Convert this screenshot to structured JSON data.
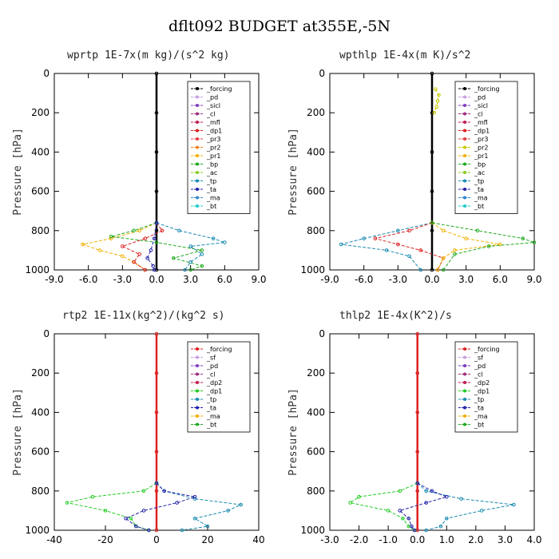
{
  "title": "dflt092  BUDGET at355E,-5N",
  "chart_data": [
    {
      "type": "line",
      "title": "wprtp   1E-7x(m kg)/(s^2 kg)",
      "ylabel": "Pressure [hPa]",
      "ylim": [
        1000,
        0
      ],
      "yticks": [
        "0",
        "200",
        "400",
        "600",
        "800",
        "1000"
      ],
      "xlim": [
        -9,
        9
      ],
      "xticks": [
        "-9.0",
        "-6.0",
        "-3.0",
        "0.0",
        "3.0",
        "6.0",
        "9.0"
      ],
      "legend_position": "top-right",
      "legend": [
        "_forcing",
        "_pd",
        "_sicl",
        "_cl",
        "_mfl",
        "_dp1",
        "_pr3",
        "_pr2",
        "_pr1",
        "_bp",
        "_ac",
        "_tp",
        "_ta",
        "_ma",
        "_bt"
      ],
      "series": [
        {
          "name": "_forcing",
          "color": "#000000",
          "p": [
            0,
            200,
            400,
            600,
            800,
            1000
          ],
          "x": [
            0,
            0,
            0,
            0,
            0,
            0
          ]
        },
        {
          "name": "_pr1",
          "color": "#f0b000",
          "p": [
            760,
            800,
            840,
            870,
            900,
            930,
            960,
            1000
          ],
          "x": [
            0,
            -1.5,
            -4,
            -6.5,
            -5,
            -3,
            -2,
            -1
          ]
        },
        {
          "name": "_dp1",
          "color": "#dd2222",
          "p": [
            760,
            800,
            840,
            880,
            920,
            960,
            1000
          ],
          "x": [
            0,
            0.5,
            -1,
            -3,
            -1.5,
            -2,
            -1
          ]
        },
        {
          "name": "_bp",
          "color": "#22aa22",
          "p": [
            760,
            800,
            830,
            860,
            900,
            940,
            980,
            1000
          ],
          "x": [
            0,
            -2,
            -4,
            0,
            4,
            1.5,
            4,
            3
          ]
        },
        {
          "name": "_tp",
          "color": "#1a8ab0",
          "p": [
            760,
            800,
            840,
            860,
            880,
            920,
            960,
            1000
          ],
          "x": [
            0,
            2,
            5,
            6,
            3,
            4,
            3,
            2.5
          ]
        },
        {
          "name": "_ta",
          "color": "#2222aa",
          "p": [
            760,
            840,
            900,
            940,
            980,
            1000
          ],
          "x": [
            0,
            -0.2,
            -0.5,
            -0.8,
            -0.3,
            -0.2
          ]
        }
      ]
    },
    {
      "type": "line",
      "title": "wpthlp   1E-4x(m K)/s^2",
      "ylabel": "Pressure [hPa]",
      "ylim": [
        1000,
        0
      ],
      "yticks": [
        "0",
        "200",
        "400",
        "600",
        "800",
        "1000"
      ],
      "xlim": [
        -9,
        9
      ],
      "xticks": [
        "-9.0",
        "-6.0",
        "-3.0",
        "0.0",
        "3.0",
        "6.0",
        "9.0"
      ],
      "legend_position": "top-right",
      "legend": [
        "_forcing",
        "_pd",
        "_sicl",
        "_cl",
        "_mfl",
        "_dp1",
        "_pr3",
        "_pr2",
        "_pr1",
        "_bp",
        "_ac",
        "_tp",
        "_ta",
        "_ma",
        "_bt"
      ],
      "series": [
        {
          "name": "_forcing",
          "color": "#000000",
          "p": [
            0,
            200,
            400,
            600,
            800,
            1000
          ],
          "x": [
            0,
            0,
            0,
            0,
            0,
            0
          ]
        },
        {
          "name": "_pr2",
          "color": "#c8c800",
          "p": [
            80,
            110,
            140,
            170,
            200
          ],
          "x": [
            0.3,
            0.6,
            0.5,
            0.4,
            0.2
          ]
        },
        {
          "name": "_tp",
          "color": "#1a8ab0",
          "p": [
            760,
            800,
            840,
            870,
            900,
            930,
            1000
          ],
          "x": [
            0,
            -3,
            -6,
            -8,
            -4,
            -2,
            -1
          ]
        },
        {
          "name": "_dp1",
          "color": "#dd2222",
          "p": [
            760,
            800,
            840,
            870,
            900,
            940,
            1000
          ],
          "x": [
            0,
            -2,
            -5,
            -3,
            -1,
            1,
            0.5
          ]
        },
        {
          "name": "_pr1",
          "color": "#f0b000",
          "p": [
            760,
            800,
            840,
            870,
            900,
            940,
            1000
          ],
          "x": [
            0,
            1,
            3,
            6,
            2,
            1,
            0.5
          ]
        },
        {
          "name": "_bp",
          "color": "#22aa22",
          "p": [
            760,
            800,
            840,
            860,
            880,
            920,
            1000
          ],
          "x": [
            0,
            4,
            8,
            9,
            5,
            2,
            1
          ]
        }
      ]
    },
    {
      "type": "line",
      "title": "rtp2   1E-11x(kg^2)/(kg^2 s)",
      "ylabel": "Pressure [hPa]",
      "ylim": [
        1000,
        0
      ],
      "yticks": [
        "0",
        "200",
        "400",
        "600",
        "800",
        "1000"
      ],
      "xlim": [
        -40,
        40
      ],
      "xticks": [
        "-40",
        "-20",
        "0",
        "20",
        "40"
      ],
      "legend_position": "top-right",
      "legend": [
        "_forcing",
        "_sf",
        "_pd",
        "_cl",
        "_dp2",
        "_dp1",
        "_tp",
        "_ta",
        "_ma",
        "_bt"
      ],
      "series": [
        {
          "name": "_forcing",
          "color": "#dd2222",
          "p": [
            0,
            200,
            400,
            600,
            800,
            1000
          ],
          "x": [
            0,
            0,
            0,
            0,
            0,
            0
          ]
        },
        {
          "name": "_dp1",
          "color": "#22cc22",
          "p": [
            760,
            800,
            830,
            860,
            900,
            940,
            980,
            1000
          ],
          "x": [
            0,
            -5,
            -25,
            -35,
            -20,
            -10,
            -8,
            -3
          ]
        },
        {
          "name": "_tp",
          "color": "#1a8ab0",
          "p": [
            760,
            800,
            840,
            870,
            900,
            940,
            980,
            1000
          ],
          "x": [
            0,
            3,
            15,
            33,
            28,
            15,
            20,
            10
          ]
        },
        {
          "name": "_ta",
          "color": "#2222aa",
          "p": [
            760,
            800,
            830,
            860,
            900,
            940,
            980,
            1000
          ],
          "x": [
            0,
            3,
            15,
            8,
            -5,
            -12,
            -8,
            -3
          ]
        }
      ]
    },
    {
      "type": "line",
      "title": "thlp2   1E-4x(K^2)/s",
      "ylabel": "Pressure [hPa]",
      "ylim": [
        1000,
        0
      ],
      "yticks": [
        "0",
        "200",
        "400",
        "600",
        "800",
        "1000"
      ],
      "xlim": [
        -3,
        4
      ],
      "xticks": [
        "-3.0",
        "-2.0",
        "-1.0",
        "0.0",
        "1.0",
        "2.0",
        "3.0",
        "4.0"
      ],
      "legend_position": "top-right",
      "legend": [
        "_forcing",
        "_sf",
        "_pd",
        "_cl",
        "_dp2",
        "_dp1",
        "_tp",
        "_ta",
        "_ma",
        "_bt"
      ],
      "series": [
        {
          "name": "_forcing",
          "color": "#dd2222",
          "p": [
            0,
            200,
            400,
            600,
            800,
            1000
          ],
          "x": [
            0,
            0,
            0,
            0,
            0,
            0
          ]
        },
        {
          "name": "_dp1",
          "color": "#22cc22",
          "p": [
            760,
            800,
            830,
            860,
            900,
            940,
            980,
            1000
          ],
          "x": [
            0,
            -0.6,
            -2,
            -2.3,
            -1,
            -0.5,
            -0.3,
            -0.1
          ]
        },
        {
          "name": "_tp",
          "color": "#1a8ab0",
          "p": [
            760,
            800,
            840,
            870,
            900,
            940,
            980,
            1000
          ],
          "x": [
            0,
            0.3,
            1.5,
            3.3,
            2.2,
            1,
            0.8,
            0.3
          ]
        },
        {
          "name": "_ta",
          "color": "#2222aa",
          "p": [
            760,
            800,
            830,
            860,
            900,
            940,
            980,
            1000
          ],
          "x": [
            0,
            0.5,
            1,
            0.3,
            -0.6,
            -0.3,
            -0.2,
            -0.1
          ]
        }
      ]
    }
  ]
}
